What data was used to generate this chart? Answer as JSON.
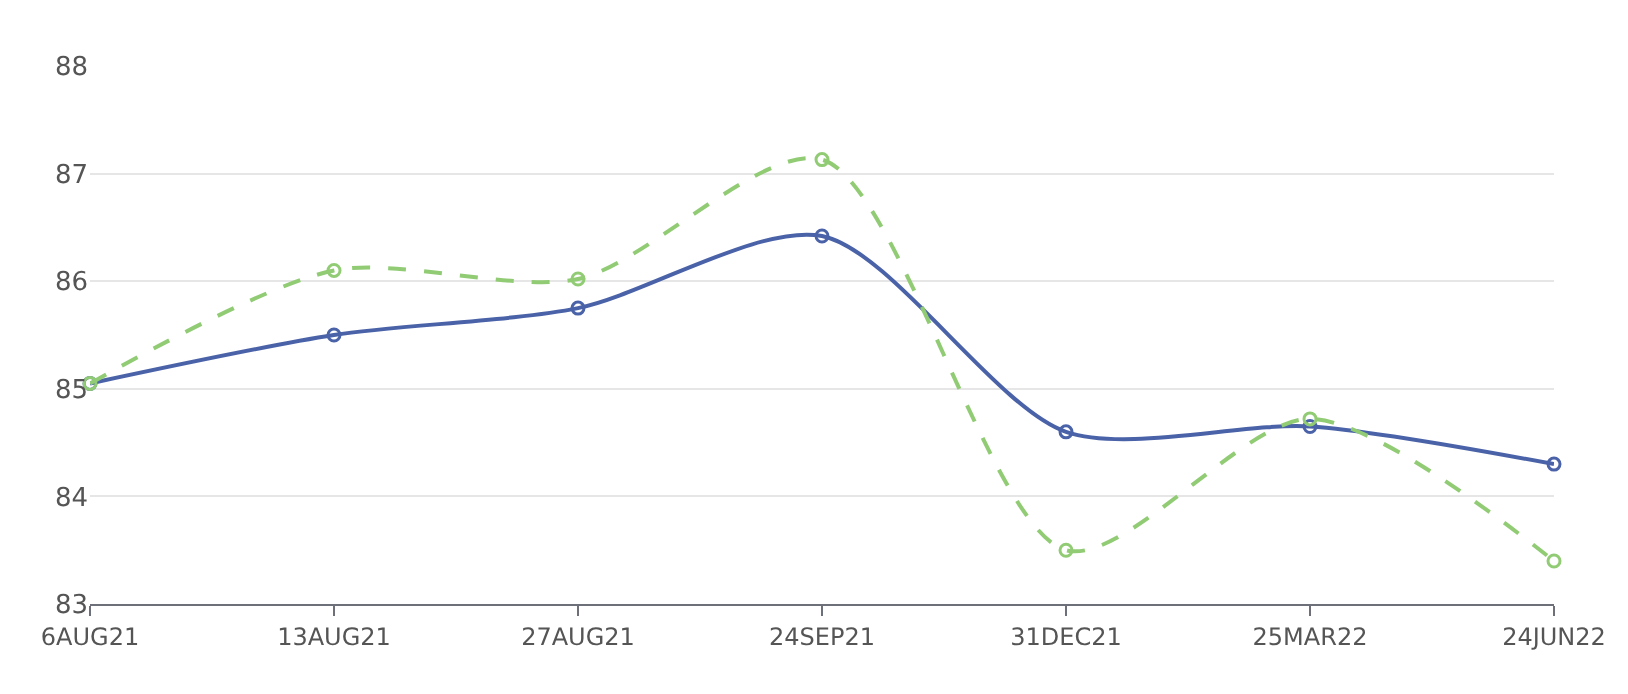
{
  "chart_data": {
    "type": "line",
    "categories": [
      "6AUG21",
      "13AUG21",
      "27AUG21",
      "24SEP21",
      "31DEC21",
      "25MAR22",
      "24JUN22"
    ],
    "series": [
      {
        "color": "#4a62a8",
        "values": [
          85.05,
          85.5,
          85.75,
          86.42,
          84.6,
          84.65,
          84.3
        ],
        "line_style": "solid"
      },
      {
        "color": "#91cc75",
        "values": [
          85.05,
          86.1,
          86.02,
          87.13,
          83.5,
          84.72,
          83.4
        ],
        "line_style": "dashed"
      }
    ],
    "ylim": [
      83,
      88
    ],
    "yticks": [
      83,
      84,
      85,
      86,
      87,
      88
    ],
    "grid": "y",
    "marker": "circle"
  }
}
